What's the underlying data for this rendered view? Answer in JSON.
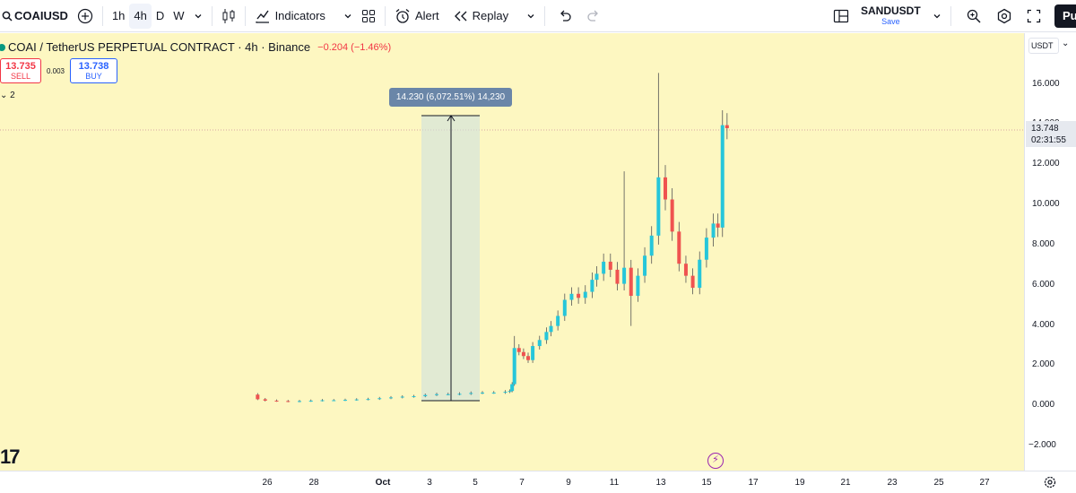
{
  "toolbar": {
    "symbol": "COAIUSD",
    "timeframes": [
      "1h",
      "4h",
      "D",
      "W"
    ],
    "active_timeframe": "4h",
    "indicators_label": "Indicators",
    "alert_label": "Alert",
    "replay_label": "Replay",
    "layout_name": "SANDUSDT",
    "layout_save": "Save",
    "publish_label": "Pu"
  },
  "legend": {
    "title": "COAI / TetherUS PERPETUAL CONTRACT · 4h · Binance",
    "change": "−0.204 (−1.46%)",
    "up_color": "#26c6da",
    "down_color": "#ef5350"
  },
  "trade": {
    "sell_price": "13.735",
    "sell_label": "SELL",
    "spread": "0.003",
    "buy_price": "13.738",
    "buy_label": "BUY"
  },
  "collapsed": "2",
  "measure": {
    "label": "14.230 (6,072.51%) 14,230"
  },
  "price_scale": {
    "currency": "USDT",
    "labels": [
      "16.000",
      "14.000",
      "12.000",
      "10.000",
      "8.000",
      "6.000",
      "4.000",
      "2.000",
      "0.000",
      "−2.000"
    ],
    "last_price": "13.748",
    "countdown": "02:31:55"
  },
  "time_scale": {
    "labels": [
      "26",
      "28",
      "Oct",
      "3",
      "5",
      "7",
      "9",
      "11",
      "13",
      "15",
      "17",
      "19",
      "21",
      "23",
      "25",
      "27"
    ]
  },
  "chart_data": {
    "type": "candlestick",
    "title": "COAI / TetherUS PERPETUAL CONTRACT · 4h · Binance",
    "x_unit": "day offset from Sep 26",
    "ylim": [
      -2.6,
      16.9
    ],
    "last_price": 13.748,
    "candles_ohlc": []
  }
}
